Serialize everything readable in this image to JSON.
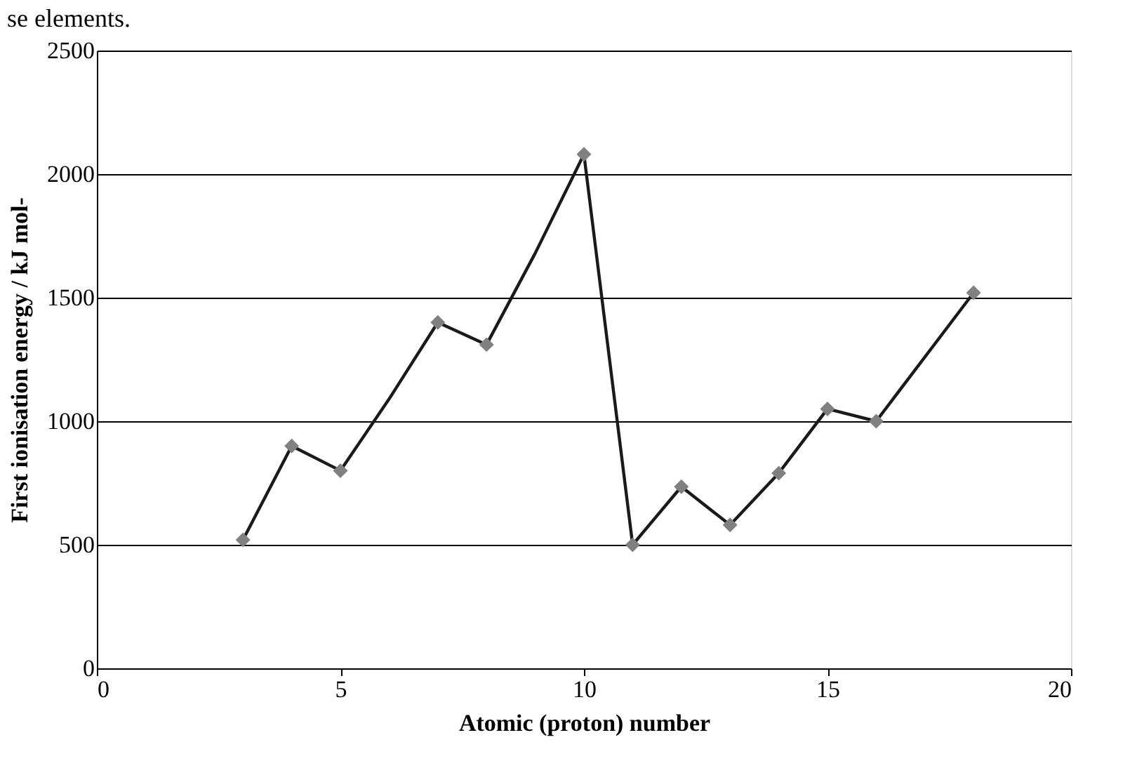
{
  "chart_data": {
    "type": "line",
    "xlabel": "Atomic (proton) number",
    "ylabel": "First ionisation energy / kJ mol-",
    "annotations": [
      "se elements."
    ],
    "xlim": [
      0,
      20
    ],
    "xticks": [
      0,
      5,
      10,
      15,
      20
    ],
    "ylim": [
      0,
      2500
    ],
    "yticks": [
      0,
      500,
      1000,
      1500,
      2000,
      2500
    ],
    "grid": "y",
    "legend": false,
    "series": [
      {
        "marker": "none",
        "color": "#1a1a1a",
        "x": [
          3,
          4,
          5,
          6,
          7,
          8,
          9,
          10,
          11,
          12,
          13,
          14,
          15,
          16,
          18
        ],
        "values": [
          520,
          900,
          800,
          1090,
          1400,
          1310,
          1680,
          2080,
          500,
          735,
          580,
          790,
          1050,
          1000,
          1520
        ]
      },
      {
        "type": "scatter",
        "marker": "diamond",
        "color": "#808080",
        "x": [
          3,
          4,
          5,
          7,
          8,
          10,
          11,
          12,
          13,
          14,
          15,
          16,
          18
        ],
        "values": [
          520,
          900,
          800,
          1400,
          1310,
          2080,
          500,
          735,
          580,
          790,
          1050,
          1000,
          1520
        ]
      }
    ]
  }
}
